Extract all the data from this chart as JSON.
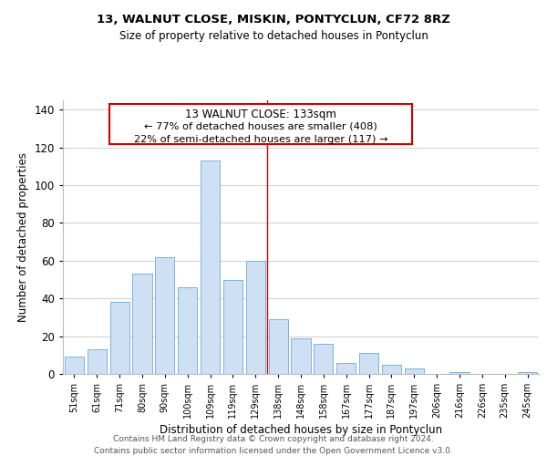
{
  "title": "13, WALNUT CLOSE, MISKIN, PONTYCLUN, CF72 8RZ",
  "subtitle": "Size of property relative to detached houses in Pontyclun",
  "xlabel": "Distribution of detached houses by size in Pontyclun",
  "ylabel": "Number of detached properties",
  "bar_labels": [
    "51sqm",
    "61sqm",
    "71sqm",
    "80sqm",
    "90sqm",
    "100sqm",
    "109sqm",
    "119sqm",
    "129sqm",
    "138sqm",
    "148sqm",
    "158sqm",
    "167sqm",
    "177sqm",
    "187sqm",
    "197sqm",
    "206sqm",
    "216sqm",
    "226sqm",
    "235sqm",
    "245sqm"
  ],
  "bar_values": [
    9,
    13,
    38,
    53,
    62,
    46,
    113,
    50,
    60,
    29,
    19,
    16,
    6,
    11,
    5,
    3,
    0,
    1,
    0,
    0,
    1
  ],
  "bar_color": "#cde0f4",
  "bar_edge_color": "#6fa8d8",
  "ylim": [
    0,
    145
  ],
  "yticks": [
    0,
    20,
    40,
    60,
    80,
    100,
    120,
    140
  ],
  "property_line_x": 8.5,
  "property_line_color": "#cc0000",
  "annotation_title": "13 WALNUT CLOSE: 133sqm",
  "annotation_line1": "← 77% of detached houses are smaller (408)",
  "annotation_line2": "22% of semi-detached houses are larger (117) →",
  "annotation_box_color": "#ffffff",
  "annotation_box_edge": "#cc0000",
  "footer_line1": "Contains HM Land Registry data © Crown copyright and database right 2024.",
  "footer_line2": "Contains public sector information licensed under the Open Government Licence v3.0.",
  "background_color": "#ffffff",
  "grid_color": "#d0d0d0"
}
